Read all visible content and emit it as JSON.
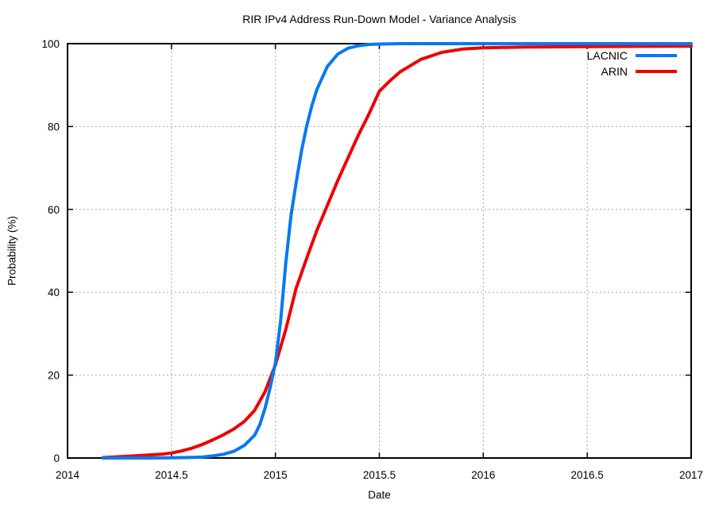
{
  "chart_data": {
    "type": "line",
    "title": "RIR IPv4 Address Run-Down Model - Variance Analysis",
    "xlabel": "Date",
    "ylabel": "Probability (%)",
    "xlim": [
      2014,
      2017
    ],
    "ylim": [
      0,
      100
    ],
    "xticks": [
      2014,
      2014.5,
      2015,
      2015.5,
      2016,
      2016.5,
      2017
    ],
    "xtick_labels": [
      "2014",
      "2014.5",
      "2015",
      "2015.5",
      "2016",
      "2016.5",
      "2017"
    ],
    "yticks": [
      0,
      20,
      40,
      60,
      80,
      100
    ],
    "ytick_labels": [
      "0",
      "20",
      "40",
      "60",
      "80",
      "100"
    ],
    "grid": true,
    "grid_style": "dashed",
    "legend_position": "top-right-inside",
    "series": [
      {
        "name": "LACNIC",
        "color": "#0878f0",
        "x": [
          2014.17,
          2014.3,
          2014.4,
          2014.5,
          2014.6,
          2014.65,
          2014.7,
          2014.75,
          2014.8,
          2014.85,
          2014.9,
          2014.925,
          2014.95,
          2014.975,
          2015.0,
          2015.025,
          2015.05,
          2015.075,
          2015.1,
          2015.125,
          2015.15,
          2015.175,
          2015.2,
          2015.25,
          2015.3,
          2015.35,
          2015.4,
          2015.45,
          2015.5,
          2015.6,
          2015.7,
          2015.8,
          2015.9,
          2016.0,
          2016.2,
          2016.4,
          2016.6,
          2016.8,
          2017.0
        ],
        "y": [
          0,
          0,
          0,
          0.05,
          0.15,
          0.25,
          0.5,
          0.9,
          1.6,
          3.0,
          5.5,
          8.0,
          12.0,
          17.0,
          23.0,
          33.0,
          47.0,
          58.5,
          66.5,
          74.0,
          80.0,
          85.0,
          89.0,
          94.5,
          97.5,
          98.9,
          99.5,
          99.8,
          99.9,
          100,
          100,
          100,
          100,
          100,
          100,
          100,
          100,
          100,
          100
        ]
      },
      {
        "name": "ARIN",
        "color": "#ee0000",
        "x": [
          2014.17,
          2014.25,
          2014.35,
          2014.45,
          2014.5,
          2014.55,
          2014.6,
          2014.65,
          2014.7,
          2014.75,
          2014.8,
          2014.85,
          2014.9,
          2014.95,
          2015.0,
          2015.05,
          2015.1,
          2015.16,
          2015.2,
          2015.25,
          2015.3,
          2015.35,
          2015.4,
          2015.45,
          2015.5,
          2015.55,
          2015.6,
          2015.7,
          2015.8,
          2015.9,
          2016.0,
          2016.2,
          2016.5,
          2016.75,
          2017.0
        ],
        "y": [
          0.1,
          0.3,
          0.6,
          0.9,
          1.2,
          1.7,
          2.4,
          3.3,
          4.4,
          5.6,
          7.0,
          8.8,
          11.5,
          16.0,
          22.5,
          31.0,
          41.0,
          49.5,
          55.0,
          61.0,
          67.0,
          72.5,
          78.0,
          83.0,
          88.5,
          91.0,
          93.2,
          96.2,
          97.9,
          98.7,
          99.0,
          99.2,
          99.3,
          99.35,
          99.4
        ]
      }
    ]
  },
  "colors": {
    "background": "#ffffff",
    "axis": "#000000",
    "grid": "#a6a6a6",
    "text": "#000000",
    "lacnic": "#0878f0",
    "arin": "#ee0000"
  }
}
